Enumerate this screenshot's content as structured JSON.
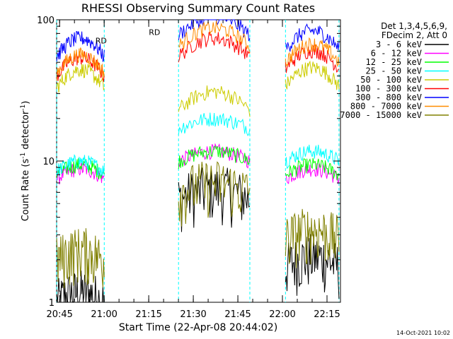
{
  "chart_data": {
    "type": "line",
    "title": "RHESSI Observing Summary Count Rates",
    "xlabel": "Start Time (22-Apr-08 20:44:02)",
    "ylabel_main": "Count Rate (s",
    "ylabel_sup1": "-1",
    "ylabel_mid": " detector",
    "ylabel_sup2": "-1",
    "ylabel_end": ")",
    "y_scale": "log",
    "ylim": [
      1,
      100
    ],
    "y_tick_labels": [
      "1",
      "10",
      "100"
    ],
    "xlim_minutes": [
      -0.03,
      95.5
    ],
    "x_ticks": [
      {
        "label": "20:45",
        "min": 0.97
      },
      {
        "label": "21:00",
        "min": 15.97
      },
      {
        "label": "21:15",
        "min": 30.97
      },
      {
        "label": "21:30",
        "min": 45.97
      },
      {
        "label": "21:45",
        "min": 60.97
      },
      {
        "label": "22:00",
        "min": 75.97
      },
      {
        "label": "22:15",
        "min": 90.97
      }
    ],
    "legend_header": [
      "Det 1,3,4,5,6,9,",
      "FDecim 2, Att 0"
    ],
    "series": [
      {
        "name": "3 - 6 keV",
        "color": "#000000",
        "level": [
          1,
          5.4,
          1.8
        ]
      },
      {
        "name": "6 - 12 keV",
        "color": "#ff00ff",
        "level": [
          7.5,
          10,
          7.5
        ]
      },
      {
        "name": "12 - 25 keV",
        "color": "#00ff00",
        "level": [
          8,
          10,
          8
        ]
      },
      {
        "name": "25 - 50 keV",
        "color": "#00ffff",
        "level": [
          8.5,
          17,
          10
        ]
      },
      {
        "name": "50 - 100 keV",
        "color": "#cccc00",
        "level": [
          33,
          23,
          34
        ]
      },
      {
        "name": "100 - 300 keV",
        "color": "#ff0000",
        "level": [
          40,
          55,
          45
        ]
      },
      {
        "name": "300 - 800 keV",
        "color": "#0000ff",
        "level": [
          55,
          78,
          62
        ]
      },
      {
        "name": "800 - 7000 keV",
        "color": "#ff8c00",
        "level": [
          42,
          65,
          50
        ]
      },
      {
        "name": "7000 - 15000 keV",
        "color": "#808000",
        "level": [
          2,
          6,
          2.8
        ]
      }
    ],
    "orbit_segments": [
      {
        "start": 0,
        "end": 16
      },
      {
        "start": 41,
        "end": 65
      },
      {
        "start": 77,
        "end": 95
      }
    ],
    "annotations": [
      {
        "text": "RD",
        "color": "#008000"
      },
      {
        "text": "RD",
        "color": "#008000"
      }
    ],
    "footer_date": "14-Oct-2021 10:02"
  }
}
